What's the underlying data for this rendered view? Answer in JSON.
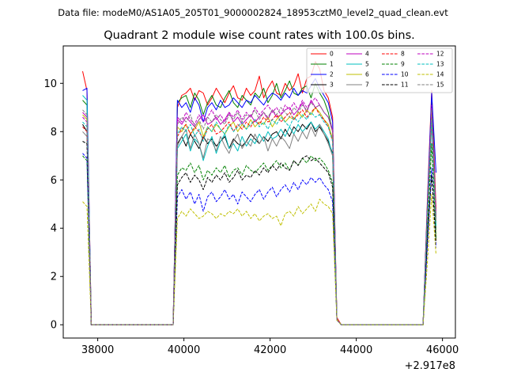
{
  "header": {
    "datafile": "Data file: modeM0/AS1A05_205T01_9000002824_18953cztM0_level2_quad_clean.evt"
  },
  "chart_data": {
    "type": "line",
    "title": "Quadrant 2 module wise count rates with 100.0s bins.",
    "xlabel": "",
    "ylabel": "",
    "offset_text": "+2.917e8",
    "xlim": [
      37200,
      46300
    ],
    "ylim": [
      -0.55,
      11.55
    ],
    "x_ticks": [
      38000,
      40000,
      42000,
      44000,
      46000
    ],
    "x_tick_labels": [
      "38000",
      "40000",
      "42000",
      "44000",
      "46000"
    ],
    "y_ticks": [
      0,
      2,
      4,
      6,
      8,
      10
    ],
    "y_tick_labels": [
      "0",
      "2",
      "4",
      "6",
      "8",
      "10"
    ],
    "legend_position": "top-right",
    "bin_width": 100,
    "segments": [
      {
        "start": 37650,
        "points": 3
      },
      {
        "start": 37850,
        "points": 20
      },
      {
        "start": 39850,
        "points": 38
      },
      {
        "start": 43650,
        "points": 20
      },
      {
        "start": 45650,
        "points": 3
      }
    ],
    "series": [
      {
        "name": "0",
        "color": "#ff0000",
        "dash": "solid",
        "pre": [
          10.5,
          9.7,
          0.2
        ],
        "active": [
          9.0,
          9.5,
          9.6,
          9.8,
          9.3,
          9.7,
          9.6,
          9.1,
          9.4,
          9.8,
          9.5,
          9.2,
          9.6,
          9.9,
          9.4,
          9.3,
          9.8,
          9.5,
          9.7,
          10.3,
          9.4,
          9.8,
          10.1,
          9.6,
          9.5,
          10.0,
          9.7,
          9.9,
          10.4,
          9.6,
          10.2,
          10.3,
          10.9,
          10.6,
          9.7,
          9.4,
          8.6,
          0.3
        ],
        "post": [
          5.2,
          9.7,
          4.8
        ]
      },
      {
        "name": "1",
        "color": "#008000",
        "dash": "solid",
        "pre": [
          9.3,
          9.1,
          0.1
        ],
        "active": [
          9.2,
          9.4,
          9.5,
          9.0,
          9.6,
          9.3,
          8.7,
          9.2,
          9.5,
          9.1,
          9.0,
          9.4,
          9.7,
          9.2,
          9.0,
          9.5,
          9.3,
          9.1,
          9.6,
          9.4,
          9.8,
          9.2,
          9.5,
          10.0,
          9.4,
          9.7,
          10.1,
          9.6,
          9.5,
          9.8,
          9.9,
          9.4,
          10.0,
          9.6,
          9.3,
          8.8,
          8.0,
          0.2
        ],
        "post": [
          4.9,
          9.4,
          4.5
        ]
      },
      {
        "name": "2",
        "color": "#0000ff",
        "dash": "solid",
        "pre": [
          9.7,
          9.8,
          0.1
        ],
        "active": [
          9.3,
          9.0,
          9.2,
          8.8,
          9.4,
          9.1,
          8.4,
          9.0,
          9.2,
          8.9,
          9.3,
          9.0,
          9.1,
          9.4,
          9.2,
          9.0,
          9.3,
          9.2,
          9.5,
          9.3,
          9.1,
          9.4,
          9.6,
          9.5,
          9.3,
          9.6,
          9.4,
          9.8,
          9.5,
          9.7,
          9.6,
          9.9,
          10.2,
          9.8,
          9.5,
          9.2,
          8.4,
          0.2
        ],
        "post": [
          5.0,
          9.6,
          6.3
        ]
      },
      {
        "name": "3",
        "color": "#000000",
        "dash": "solid",
        "pre": [
          8.3,
          8.0,
          0.1
        ],
        "active": [
          7.5,
          7.8,
          7.4,
          7.9,
          7.6,
          7.3,
          7.8,
          7.5,
          7.7,
          7.4,
          7.6,
          7.8,
          7.3,
          7.7,
          7.5,
          7.4,
          7.6,
          7.9,
          7.7,
          7.5,
          7.8,
          7.6,
          7.9,
          8.0,
          7.7,
          8.1,
          7.8,
          8.2,
          8.0,
          8.3,
          8.1,
          8.4,
          8.0,
          8.2,
          7.9,
          7.6,
          7.1,
          0.2
        ],
        "post": [
          4.3,
          8.8,
          4.0
        ]
      },
      {
        "name": "4",
        "color": "#bf00bf",
        "dash": "solid",
        "pre": [
          8.8,
          8.6,
          0.1
        ],
        "active": [
          8.5,
          8.3,
          8.6,
          8.4,
          8.2,
          8.5,
          8.7,
          8.3,
          8.4,
          8.6,
          8.3,
          8.5,
          8.8,
          8.4,
          8.6,
          8.3,
          8.5,
          8.7,
          8.4,
          8.6,
          8.8,
          8.5,
          8.9,
          8.6,
          8.7,
          8.9,
          9.0,
          8.7,
          8.9,
          9.2,
          8.8,
          9.3,
          9.0,
          9.1,
          8.8,
          8.6,
          8.0,
          0.2
        ],
        "post": [
          4.7,
          9.0,
          4.4
        ]
      },
      {
        "name": "5",
        "color": "#00bfbf",
        "dash": "solid",
        "pre": [
          9.5,
          9.3,
          0.1
        ],
        "active": [
          7.3,
          7.6,
          7.9,
          7.2,
          7.7,
          7.5,
          6.8,
          7.4,
          7.8,
          7.1,
          7.6,
          7.9,
          7.3,
          7.5,
          7.2,
          7.8,
          7.4,
          7.7,
          7.5,
          7.9,
          7.6,
          8.0,
          7.7,
          7.8,
          8.1,
          7.8,
          8.2,
          7.9,
          8.3,
          8.0,
          8.2,
          8.4,
          8.1,
          8.3,
          8.0,
          7.7,
          7.0,
          0.2
        ],
        "post": [
          4.4,
          8.6,
          4.2
        ]
      },
      {
        "name": "6",
        "color": "#bfbf00",
        "dash": "solid",
        "pre": [
          8.7,
          8.5,
          0.1
        ],
        "active": [
          8.2,
          8.0,
          8.3,
          7.9,
          8.1,
          8.4,
          7.8,
          8.2,
          8.0,
          8.3,
          8.1,
          7.9,
          8.2,
          8.4,
          8.0,
          8.3,
          8.1,
          8.5,
          8.2,
          8.4,
          8.3,
          8.6,
          8.2,
          8.5,
          8.7,
          8.4,
          8.6,
          8.5,
          8.8,
          8.6,
          8.9,
          8.7,
          9.0,
          8.8,
          8.5,
          8.3,
          7.7,
          0.2
        ],
        "post": [
          4.5,
          8.9,
          3.5
        ]
      },
      {
        "name": "7",
        "color": "#808080",
        "dash": "solid",
        "pre": [
          8.0,
          7.8,
          0.1
        ],
        "active": [
          7.4,
          7.8,
          8.1,
          7.3,
          7.9,
          7.5,
          6.9,
          7.7,
          7.6,
          7.2,
          7.8,
          7.4,
          7.1,
          7.6,
          7.9,
          7.3,
          7.6,
          7.4,
          7.9,
          7.5,
          7.8,
          7.2,
          7.7,
          7.4,
          7.8,
          7.6,
          7.3,
          7.9,
          7.6,
          8.0,
          7.7,
          8.2,
          7.8,
          8.3,
          7.9,
          7.5,
          7.0,
          0.2
        ],
        "post": [
          4.1,
          8.4,
          3.9
        ]
      },
      {
        "name": "8",
        "color": "#ff0000",
        "dash": "dashed",
        "pre": [
          8.2,
          8.0,
          0.1
        ],
        "active": [
          7.8,
          8.1,
          8.3,
          7.9,
          8.2,
          8.0,
          7.7,
          8.1,
          8.3,
          7.9,
          8.0,
          8.2,
          8.4,
          8.0,
          8.3,
          8.1,
          8.4,
          8.2,
          8.5,
          8.3,
          8.6,
          8.4,
          8.5,
          8.7,
          8.4,
          8.6,
          8.8,
          8.5,
          8.7,
          8.9,
          8.6,
          8.8,
          9.0,
          8.7,
          8.5,
          8.2,
          7.6,
          0.2
        ],
        "post": [
          4.6,
          8.7,
          4.3
        ]
      },
      {
        "name": "9",
        "color": "#008000",
        "dash": "dashed",
        "pre": [
          7.0,
          6.8,
          0.1
        ],
        "active": [
          6.2,
          6.5,
          6.4,
          6.7,
          6.3,
          6.6,
          6.0,
          6.4,
          6.2,
          6.5,
          6.3,
          6.6,
          6.1,
          6.4,
          6.5,
          6.2,
          6.6,
          6.4,
          6.3,
          6.5,
          6.7,
          6.4,
          6.6,
          6.8,
          6.5,
          6.7,
          6.4,
          6.8,
          6.6,
          6.9,
          6.7,
          7.0,
          6.8,
          6.9,
          6.7,
          6.4,
          5.9,
          0.2
        ],
        "post": [
          3.8,
          7.5,
          3.6
        ]
      },
      {
        "name": "10",
        "color": "#0000ff",
        "dash": "dashed",
        "pre": [
          7.1,
          6.9,
          0.1
        ],
        "active": [
          5.3,
          5.6,
          5.2,
          5.5,
          5.0,
          5.4,
          4.7,
          5.3,
          5.5,
          5.1,
          5.3,
          5.6,
          5.2,
          5.4,
          5.0,
          5.5,
          5.3,
          5.1,
          5.4,
          5.6,
          5.2,
          5.5,
          5.7,
          5.3,
          5.6,
          5.8,
          5.5,
          5.9,
          5.6,
          6.0,
          5.8,
          6.1,
          5.9,
          6.1,
          5.8,
          5.6,
          5.1,
          0.2
        ],
        "post": [
          3.3,
          6.5,
          3.2
        ]
      },
      {
        "name": "11",
        "color": "#000000",
        "dash": "dashed",
        "pre": [
          7.6,
          7.5,
          0.1
        ],
        "active": [
          5.8,
          6.1,
          6.3,
          5.9,
          6.2,
          6.0,
          5.6,
          6.1,
          5.9,
          6.2,
          6.0,
          6.3,
          5.9,
          6.1,
          6.4,
          6.0,
          6.2,
          6.1,
          6.4,
          6.2,
          6.5,
          6.3,
          6.6,
          6.4,
          6.7,
          6.5,
          6.4,
          6.8,
          6.6,
          6.9,
          7.0,
          6.8,
          6.9,
          6.7,
          6.5,
          6.3,
          5.7,
          0.2
        ],
        "post": [
          3.6,
          6.2,
          3.4
        ]
      },
      {
        "name": "12",
        "color": "#bf00bf",
        "dash": "dashed",
        "pre": [
          8.6,
          8.4,
          0.1
        ],
        "active": [
          8.6,
          8.4,
          8.8,
          8.5,
          8.3,
          8.7,
          8.4,
          8.6,
          8.9,
          8.5,
          8.7,
          8.4,
          8.8,
          8.6,
          8.9,
          8.5,
          8.8,
          8.6,
          9.0,
          8.7,
          8.9,
          9.1,
          8.8,
          9.0,
          8.7,
          9.1,
          8.9,
          9.2,
          8.9,
          9.3,
          9.0,
          9.2,
          9.4,
          9.1,
          8.8,
          8.6,
          8.1,
          0.2
        ],
        "post": [
          4.8,
          9.1,
          4.6
        ]
      },
      {
        "name": "13",
        "color": "#00bfbf",
        "dash": "dashed",
        "pre": [
          8.4,
          8.2,
          0.1
        ],
        "active": [
          7.9,
          8.2,
          8.0,
          8.3,
          7.8,
          8.1,
          7.6,
          8.2,
          8.0,
          8.4,
          8.1,
          7.9,
          8.3,
          8.0,
          8.2,
          8.4,
          8.1,
          8.3,
          8.5,
          8.2,
          8.4,
          8.1,
          8.5,
          8.3,
          8.6,
          8.4,
          8.2,
          8.6,
          8.4,
          8.7,
          8.5,
          8.8,
          8.6,
          8.7,
          8.4,
          8.2,
          7.6,
          0.2
        ],
        "post": [
          4.6,
          8.5,
          4.1
        ]
      },
      {
        "name": "14",
        "color": "#bfbf00",
        "dash": "dashed",
        "pre": [
          5.1,
          4.9,
          0.1
        ],
        "active": [
          4.4,
          4.7,
          4.5,
          4.8,
          4.6,
          4.4,
          4.5,
          4.7,
          4.6,
          4.4,
          4.6,
          4.5,
          4.7,
          4.6,
          4.8,
          4.5,
          4.7,
          4.4,
          4.6,
          4.3,
          4.5,
          4.6,
          4.4,
          4.5,
          4.1,
          4.6,
          4.7,
          4.5,
          4.9,
          4.6,
          4.8,
          5.0,
          4.7,
          5.2,
          5.0,
          4.9,
          4.6,
          0.2
        ],
        "post": [
          2.6,
          5.4,
          2.9
        ]
      },
      {
        "name": "15",
        "color": "#808080",
        "dash": "dashed",
        "pre": [
          8.9,
          8.7,
          0.1
        ],
        "active": [
          8.3,
          8.6,
          8.4,
          8.7,
          8.2,
          8.5,
          8.1,
          8.6,
          8.4,
          8.7,
          8.5,
          8.3,
          8.7,
          8.5,
          8.8,
          8.4,
          8.7,
          8.6,
          8.9,
          8.5,
          8.8,
          8.6,
          8.9,
          8.7,
          9.0,
          8.8,
          8.6,
          9.0,
          8.8,
          9.1,
          8.9,
          9.2,
          9.0,
          9.1,
          8.8,
          8.6,
          8.0,
          0.2
        ],
        "post": [
          4.7,
          8.9,
          4.3
        ]
      }
    ]
  }
}
